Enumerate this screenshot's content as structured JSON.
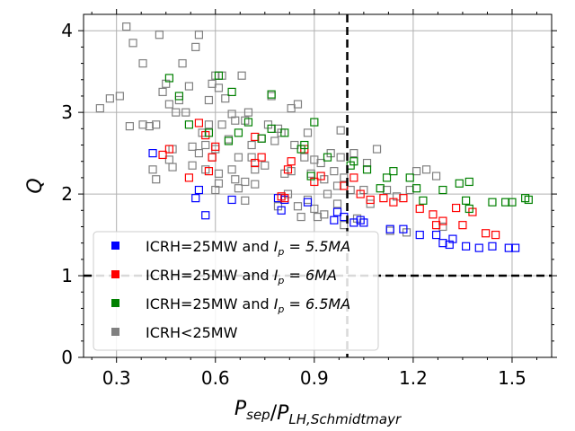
{
  "chart_data": {
    "type": "scatter",
    "xlabel": "P_sep/P_LH,Schmidtmayr",
    "ylabel": "Q",
    "xlim": [
      0.2,
      1.62
    ],
    "ylim": [
      0,
      4.2
    ],
    "xticks": [
      "0.3",
      "0.6",
      "0.9",
      "1.2",
      "1.5"
    ],
    "xtick_values": [
      0.3,
      0.6,
      0.9,
      1.2,
      1.5
    ],
    "yticks": [
      "0",
      "1",
      "2",
      "3",
      "4"
    ],
    "ytick_values": [
      0,
      1,
      2,
      3,
      4
    ],
    "grid": true,
    "reference_lines": [
      {
        "orientation": "vertical",
        "value": 1.0,
        "style": "dashed",
        "color": "#000000"
      },
      {
        "orientation": "horizontal",
        "value": 1.0,
        "style": "dashed",
        "color": "#000000"
      }
    ],
    "legend_position": "bottom-left",
    "series": [
      {
        "name": "ICRH<25MW",
        "legend_prefix": "ICRH<25MW",
        "legend_math": "",
        "color": "#808080",
        "marker": "square-open",
        "points": [
          [
            0.25,
            3.05
          ],
          [
            0.28,
            3.17
          ],
          [
            0.31,
            3.2
          ],
          [
            0.33,
            4.05
          ],
          [
            0.34,
            2.83
          ],
          [
            0.35,
            3.85
          ],
          [
            0.38,
            3.6
          ],
          [
            0.38,
            2.85
          ],
          [
            0.4,
            2.83
          ],
          [
            0.41,
            2.3
          ],
          [
            0.42,
            2.18
          ],
          [
            0.42,
            2.85
          ],
          [
            0.43,
            3.95
          ],
          [
            0.44,
            3.25
          ],
          [
            0.45,
            3.35
          ],
          [
            0.46,
            3.1
          ],
          [
            0.46,
            2.42
          ],
          [
            0.47,
            2.55
          ],
          [
            0.47,
            2.33
          ],
          [
            0.48,
            3.0
          ],
          [
            0.49,
            3.15
          ],
          [
            0.5,
            3.6
          ],
          [
            0.51,
            3.0
          ],
          [
            0.52,
            3.32
          ],
          [
            0.53,
            2.58
          ],
          [
            0.53,
            2.35
          ],
          [
            0.54,
            3.8
          ],
          [
            0.55,
            3.95
          ],
          [
            0.55,
            2.5
          ],
          [
            0.56,
            2.75
          ],
          [
            0.57,
            2.3
          ],
          [
            0.57,
            2.6
          ],
          [
            0.58,
            2.85
          ],
          [
            0.58,
            3.15
          ],
          [
            0.59,
            3.35
          ],
          [
            0.59,
            2.45
          ],
          [
            0.6,
            3.45
          ],
          [
            0.6,
            2.05
          ],
          [
            0.6,
            2.55
          ],
          [
            0.61,
            2.25
          ],
          [
            0.61,
            3.3
          ],
          [
            0.61,
            2.13
          ],
          [
            0.62,
            2.85
          ],
          [
            0.62,
            3.45
          ],
          [
            0.63,
            3.17
          ],
          [
            0.64,
            2.67
          ],
          [
            0.65,
            2.98
          ],
          [
            0.65,
            2.3
          ],
          [
            0.66,
            2.18
          ],
          [
            0.66,
            2.9
          ],
          [
            0.67,
            2.45
          ],
          [
            0.67,
            2.07
          ],
          [
            0.68,
            3.45
          ],
          [
            0.69,
            2.9
          ],
          [
            0.69,
            2.15
          ],
          [
            0.69,
            1.92
          ],
          [
            0.7,
            3.0
          ],
          [
            0.71,
            2.45
          ],
          [
            0.71,
            2.6
          ],
          [
            0.72,
            2.3
          ],
          [
            0.72,
            2.12
          ],
          [
            0.74,
            2.68
          ],
          [
            0.75,
            2.35
          ],
          [
            0.76,
            2.85
          ],
          [
            0.77,
            3.2
          ],
          [
            0.78,
            2.65
          ],
          [
            0.79,
            1.85
          ],
          [
            0.79,
            2.8
          ],
          [
            0.8,
            2.75
          ],
          [
            0.81,
            2.25
          ],
          [
            0.82,
            2.0
          ],
          [
            0.83,
            3.05
          ],
          [
            0.83,
            2.28
          ],
          [
            0.84,
            2.6
          ],
          [
            0.85,
            1.85
          ],
          [
            0.85,
            3.1
          ],
          [
            0.86,
            1.72
          ],
          [
            0.87,
            2.45
          ],
          [
            0.88,
            1.93
          ],
          [
            0.88,
            2.75
          ],
          [
            0.89,
            2.25
          ],
          [
            0.9,
            2.42
          ],
          [
            0.9,
            1.82
          ],
          [
            0.91,
            1.72
          ],
          [
            0.92,
            2.38
          ],
          [
            0.93,
            2.18
          ],
          [
            0.93,
            1.75
          ],
          [
            0.94,
            2.0
          ],
          [
            0.95,
            2.5
          ],
          [
            0.96,
            2.28
          ],
          [
            0.97,
            1.88
          ],
          [
            0.97,
            2.1
          ],
          [
            0.98,
            2.45
          ],
          [
            0.98,
            2.78
          ],
          [
            0.99,
            2.2
          ],
          [
            0.99,
            1.62
          ],
          [
            1.01,
            2.05
          ],
          [
            1.02,
            2.5
          ],
          [
            1.03,
            1.7
          ],
          [
            1.05,
            2.05
          ],
          [
            1.06,
            2.38
          ],
          [
            1.07,
            1.88
          ],
          [
            1.09,
            2.55
          ],
          [
            1.12,
            2.05
          ],
          [
            1.13,
            1.55
          ],
          [
            1.15,
            1.97
          ],
          [
            1.18,
            1.53
          ],
          [
            1.19,
            2.05
          ],
          [
            1.21,
            2.28
          ],
          [
            1.24,
            2.3
          ],
          [
            1.27,
            2.22
          ],
          [
            1.29,
            1.6
          ]
        ]
      },
      {
        "name": "ICRH=25MW and Ip = 5.5MA",
        "legend_prefix": "ICRH=25MW and ",
        "legend_math": "I_p = 5.5MA",
        "color": "#0000ff",
        "marker": "square-open",
        "points": [
          [
            0.41,
            2.5
          ],
          [
            0.54,
            1.95
          ],
          [
            0.55,
            2.05
          ],
          [
            0.57,
            1.74
          ],
          [
            0.65,
            1.93
          ],
          [
            0.79,
            1.95
          ],
          [
            0.8,
            1.8
          ],
          [
            0.81,
            1.93
          ],
          [
            0.88,
            1.9
          ],
          [
            0.96,
            1.68
          ],
          [
            0.97,
            1.78
          ],
          [
            0.99,
            1.72
          ],
          [
            1.02,
            1.65
          ],
          [
            1.04,
            1.68
          ],
          [
            1.05,
            1.65
          ],
          [
            1.13,
            1.57
          ],
          [
            1.17,
            1.57
          ],
          [
            1.22,
            1.5
          ],
          [
            1.27,
            1.5
          ],
          [
            1.29,
            1.4
          ],
          [
            1.31,
            1.38
          ],
          [
            1.32,
            1.45
          ],
          [
            1.36,
            1.36
          ],
          [
            1.4,
            1.34
          ],
          [
            1.44,
            1.36
          ],
          [
            1.49,
            1.34
          ],
          [
            1.51,
            1.34
          ]
        ]
      },
      {
        "name": "ICRH=25MW and Ip = 6MA",
        "legend_prefix": "ICRH=25MW and ",
        "legend_math": "I_p = 6MA",
        "color": "#ff0000",
        "marker": "square-open",
        "points": [
          [
            0.44,
            2.48
          ],
          [
            0.46,
            2.55
          ],
          [
            0.52,
            2.2
          ],
          [
            0.55,
            2.87
          ],
          [
            0.57,
            2.72
          ],
          [
            0.58,
            2.28
          ],
          [
            0.59,
            2.45
          ],
          [
            0.6,
            2.58
          ],
          [
            0.72,
            2.7
          ],
          [
            0.72,
            2.38
          ],
          [
            0.74,
            2.45
          ],
          [
            0.8,
            1.97
          ],
          [
            0.81,
            1.95
          ],
          [
            0.82,
            2.3
          ],
          [
            0.83,
            2.4
          ],
          [
            0.87,
            2.55
          ],
          [
            0.9,
            2.15
          ],
          [
            0.92,
            2.22
          ],
          [
            0.99,
            2.1
          ],
          [
            1.02,
            2.2
          ],
          [
            1.04,
            2.0
          ],
          [
            1.07,
            1.93
          ],
          [
            1.11,
            1.95
          ],
          [
            1.14,
            1.9
          ],
          [
            1.17,
            1.95
          ],
          [
            1.22,
            1.82
          ],
          [
            1.26,
            1.75
          ],
          [
            1.27,
            1.62
          ],
          [
            1.29,
            1.67
          ],
          [
            1.33,
            1.83
          ],
          [
            1.35,
            1.62
          ],
          [
            1.38,
            1.78
          ],
          [
            1.42,
            1.52
          ],
          [
            1.45,
            1.5
          ]
        ]
      },
      {
        "name": "ICRH=25MW and Ip = 6.5MA",
        "legend_prefix": "ICRH=25MW and ",
        "legend_math": "I_p = 6.5MA",
        "color": "#008000",
        "marker": "square-open",
        "points": [
          [
            0.46,
            3.42
          ],
          [
            0.49,
            3.2
          ],
          [
            0.52,
            2.85
          ],
          [
            0.58,
            2.75
          ],
          [
            0.61,
            3.45
          ],
          [
            0.64,
            2.65
          ],
          [
            0.65,
            3.25
          ],
          [
            0.67,
            2.75
          ],
          [
            0.7,
            2.88
          ],
          [
            0.74,
            2.68
          ],
          [
            0.77,
            3.22
          ],
          [
            0.77,
            2.8
          ],
          [
            0.81,
            2.75
          ],
          [
            0.86,
            2.55
          ],
          [
            0.87,
            2.6
          ],
          [
            0.89,
            2.22
          ],
          [
            0.9,
            2.88
          ],
          [
            0.94,
            2.45
          ],
          [
            1.01,
            2.35
          ],
          [
            1.02,
            2.4
          ],
          [
            1.06,
            2.3
          ],
          [
            1.1,
            2.07
          ],
          [
            1.12,
            2.2
          ],
          [
            1.14,
            2.28
          ],
          [
            1.19,
            2.2
          ],
          [
            1.21,
            2.07
          ],
          [
            1.23,
            1.92
          ],
          [
            1.29,
            2.05
          ],
          [
            1.34,
            2.13
          ],
          [
            1.36,
            1.92
          ],
          [
            1.37,
            2.15
          ],
          [
            1.37,
            1.82
          ],
          [
            1.44,
            1.9
          ],
          [
            1.48,
            1.9
          ],
          [
            1.5,
            1.9
          ],
          [
            1.54,
            1.95
          ],
          [
            1.55,
            1.93
          ]
        ]
      }
    ],
    "legend_order": [
      1,
      2,
      3,
      0
    ]
  }
}
